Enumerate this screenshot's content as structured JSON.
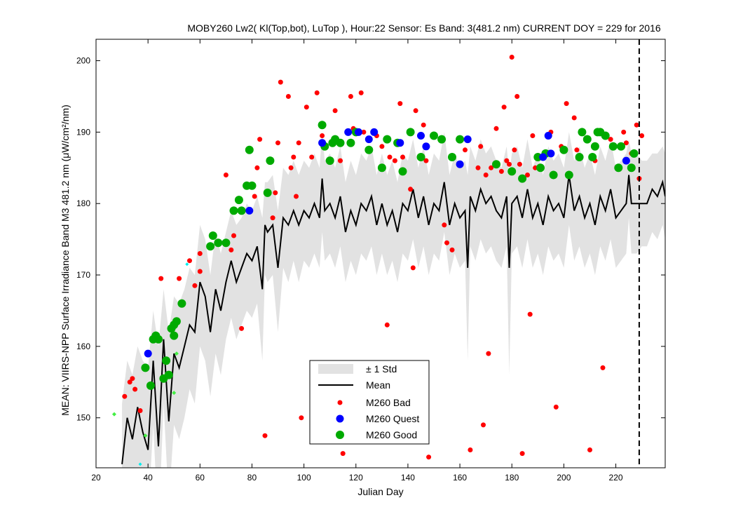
{
  "chart_data": {
    "type": "scatter",
    "title": "MOBY260   Lw2( Kl(Top,bot), LuTop ),   Hour:22 Sensor: Es Band: 3(481.2 nm)   CURRENT DOY = 229 for 2016",
    "xlabel": "Julian Day",
    "ylabel": "MEAN: VIIRS-NPP Surface Irradiance Band M3 481.2 nm (μW/cm²/nm)",
    "xlim": [
      20,
      239
    ],
    "ylim": [
      143,
      203
    ],
    "x_ticks": [
      "20",
      "40",
      "60",
      "80",
      "100",
      "120",
      "140",
      "160",
      "180",
      "200",
      "220"
    ],
    "y_ticks": [
      "150",
      "160",
      "170",
      "180",
      "190",
      "200"
    ],
    "current_doy": 229,
    "grid": false,
    "legend_position": "lower-center",
    "legend": [
      "± 1 Std",
      "Mean",
      "M260 Bad",
      "M260 Quest",
      "M260 Good"
    ],
    "colors": {
      "std_band": "#e2e2e2",
      "mean": "#000000",
      "bad": "#ff0000",
      "quest": "#0000ff",
      "good": "#00aa00",
      "extra_green": "#44ee44",
      "extra_cyan": "#00eeee"
    },
    "mean_series": {
      "x": [
        30,
        32,
        34,
        36,
        38,
        40,
        42,
        44,
        46,
        48,
        50,
        52,
        54,
        56,
        58,
        60,
        62,
        64,
        66,
        68,
        70,
        72,
        74,
        76,
        78,
        80,
        82,
        84,
        85,
        86,
        88,
        90,
        92,
        94,
        96,
        98,
        100,
        102,
        104,
        106,
        107,
        108,
        110,
        112,
        114,
        116,
        118,
        120,
        122,
        124,
        126,
        128,
        130,
        132,
        134,
        136,
        138,
        140,
        142,
        144,
        146,
        148,
        150,
        152,
        154,
        156,
        158,
        160,
        162,
        163,
        164,
        166,
        168,
        170,
        172,
        174,
        176,
        178,
        179,
        180,
        182,
        184,
        186,
        188,
        190,
        192,
        194,
        196,
        198,
        200,
        202,
        204,
        206,
        208,
        210,
        212,
        214,
        216,
        218,
        220,
        222,
        224,
        225,
        226,
        228,
        230,
        232,
        234,
        236,
        238,
        239
      ],
      "y": [
        143.5,
        150,
        147,
        151.5,
        148,
        145.5,
        158,
        146,
        161,
        149.5,
        159,
        157,
        160,
        163,
        162,
        169,
        167,
        162,
        168,
        165,
        169,
        172,
        169,
        171,
        173,
        172,
        174,
        168,
        177,
        176,
        177,
        171,
        178,
        177,
        179,
        177,
        179,
        178,
        180,
        178,
        183.5,
        179,
        180,
        178,
        181,
        176,
        179,
        177,
        180,
        179,
        181,
        177,
        180,
        177,
        179,
        176,
        180,
        179,
        182,
        178,
        181,
        177,
        180,
        179,
        183,
        177,
        180,
        178,
        179,
        171,
        181,
        179,
        182,
        180,
        181,
        179,
        178,
        181,
        171,
        180,
        181,
        178,
        182,
        178,
        180,
        177,
        181,
        179,
        180,
        178,
        184,
        179,
        181,
        178,
        180,
        177,
        181,
        179,
        182,
        178,
        179,
        180,
        184,
        180,
        180,
        180,
        180,
        182,
        181,
        183,
        181
      ]
    },
    "std_upper": [
      152,
      158,
      156,
      160,
      158,
      157,
      165,
      160,
      168,
      162,
      167,
      166,
      168,
      171,
      170,
      177,
      175,
      170,
      176,
      173,
      176,
      179,
      177,
      178,
      180,
      179,
      181,
      178,
      183,
      183,
      184,
      179,
      185,
      184,
      186,
      184,
      186,
      185,
      187,
      185,
      190,
      186,
      187,
      185,
      188,
      183,
      186,
      184,
      187,
      186,
      188,
      184,
      187,
      184,
      186,
      183,
      187,
      186,
      189,
      185,
      188,
      184,
      187,
      186,
      190,
      184,
      187,
      185,
      186,
      184,
      188,
      186,
      189,
      187,
      188,
      186,
      185,
      188,
      184,
      187,
      188,
      185,
      189,
      185,
      187,
      184,
      188,
      186,
      187,
      185,
      190,
      186,
      188,
      185,
      187,
      184,
      188,
      186,
      189,
      185,
      186,
      187,
      189,
      187,
      187,
      186,
      186,
      187,
      187,
      188,
      187
    ],
    "std_lower": [
      141,
      141,
      139,
      142,
      139,
      136,
      149,
      134,
      152,
      138,
      149,
      147,
      150,
      154,
      152,
      160,
      158,
      153,
      159,
      156,
      161,
      164,
      161,
      163,
      165,
      164,
      166,
      158,
      170,
      169,
      170,
      162,
      171,
      169,
      172,
      169,
      172,
      171,
      173,
      171,
      176,
      172,
      173,
      171,
      174,
      169,
      172,
      170,
      173,
      172,
      174,
      170,
      173,
      170,
      172,
      169,
      173,
      172,
      175,
      171,
      174,
      170,
      173,
      172,
      176,
      170,
      173,
      171,
      172,
      158,
      174,
      172,
      175,
      173,
      174,
      172,
      171,
      174,
      156,
      173,
      174,
      171,
      175,
      171,
      173,
      170,
      174,
      172,
      173,
      171,
      177,
      172,
      174,
      171,
      173,
      170,
      174,
      172,
      175,
      171,
      172,
      173,
      178,
      173,
      173,
      174,
      174,
      176,
      175,
      177,
      175
    ],
    "bad_points": {
      "x": [
        31,
        33,
        34,
        35,
        37,
        45,
        52,
        56,
        58,
        60,
        60,
        70,
        72,
        73,
        76,
        81,
        82,
        83,
        85,
        88,
        89,
        90,
        91,
        94,
        95,
        96,
        97,
        98,
        99,
        101,
        103,
        105,
        107,
        112,
        114,
        115,
        118,
        119,
        120,
        122,
        123,
        128,
        130,
        132,
        133,
        135,
        137,
        138,
        141,
        142,
        143,
        146,
        147,
        148,
        154,
        155,
        157,
        162,
        164,
        167,
        168,
        169,
        170,
        171,
        172,
        174,
        176,
        177,
        178,
        179,
        180,
        181,
        182,
        183,
        184,
        186,
        187,
        188,
        189,
        190,
        195,
        197,
        199,
        201,
        204,
        205,
        210,
        212,
        215,
        218,
        223,
        224,
        226,
        228,
        229,
        230
      ],
      "y": [
        153,
        155,
        155.5,
        154,
        151,
        169.5,
        169.5,
        172,
        168.5,
        173,
        170.5,
        184,
        173.5,
        175.5,
        162.5,
        181,
        185,
        189,
        147.5,
        178,
        181.5,
        188.5,
        197,
        195,
        185,
        186.5,
        181,
        188.5,
        150,
        193.5,
        186.5,
        195.5,
        189.5,
        193,
        186,
        145,
        195,
        190.5,
        190,
        195.5,
        190,
        189.5,
        188,
        163,
        186.5,
        186,
        194,
        186.5,
        182,
        171,
        193,
        191,
        186,
        144.5,
        177,
        174.5,
        173.5,
        187.5,
        145.5,
        185,
        188,
        149,
        184,
        159,
        185,
        190.5,
        184.5,
        193.5,
        186,
        185.5,
        200.5,
        187.5,
        195,
        185.5,
        145,
        184,
        164.5,
        189.5,
        185,
        186.5,
        190,
        151.5,
        188,
        194,
        192,
        187.5,
        145.5,
        186,
        157,
        189,
        190,
        188.5,
        187,
        191,
        183.5,
        189.5
      ],
      "radius": 3.5
    },
    "quest_points": {
      "x": [
        40,
        79,
        107,
        117,
        121,
        125,
        127,
        137,
        145,
        147,
        160,
        163,
        192,
        194,
        195,
        224
      ],
      "y": [
        159,
        179,
        188.5,
        190,
        190,
        189,
        190,
        188.5,
        189.5,
        188,
        185.5,
        189,
        186.5,
        189.5,
        187,
        186
      ],
      "radius": 5.5
    },
    "good_points": {
      "x": [
        39,
        41,
        42,
        43,
        44,
        46,
        47,
        48,
        49,
        50,
        50,
        51,
        53,
        64,
        65,
        67,
        70,
        73,
        75,
        76,
        78,
        79,
        80,
        86,
        87,
        107,
        108,
        110,
        111,
        112,
        114,
        118,
        120,
        125,
        130,
        132,
        136,
        138,
        141,
        145,
        150,
        153,
        157,
        160,
        174,
        180,
        184,
        190,
        191,
        193,
        196,
        200,
        202,
        206,
        207,
        209,
        211,
        212,
        213,
        214,
        216,
        219,
        221,
        222,
        226,
        227
      ],
      "y": [
        157,
        154.5,
        161,
        161.5,
        161,
        155.5,
        158,
        156,
        162.5,
        161.5,
        163,
        163.5,
        166,
        174,
        175.5,
        174.5,
        174.5,
        179,
        180.5,
        179,
        182.5,
        187.5,
        182.5,
        181.5,
        186,
        191,
        188,
        186,
        188.5,
        189,
        188.5,
        188.5,
        190,
        187.5,
        185,
        189,
        188.5,
        184.5,
        190,
        186.5,
        189.5,
        189,
        186.5,
        189,
        185.5,
        184.5,
        183.5,
        186.5,
        185,
        187,
        184,
        187.5,
        184,
        186.5,
        190,
        189,
        186.5,
        188,
        190,
        190,
        189.5,
        188,
        185,
        188,
        185,
        187
      ],
      "radius": 6
    },
    "extra_green_points": {
      "x": [
        27,
        39,
        50,
        51
      ],
      "y": [
        150.5,
        147.5,
        153.5,
        159
      ],
      "radius": 3
    },
    "extra_cyan_points": {
      "x": [
        37,
        55
      ],
      "y": [
        143.5,
        171.5
      ],
      "radius": 2.5
    }
  }
}
